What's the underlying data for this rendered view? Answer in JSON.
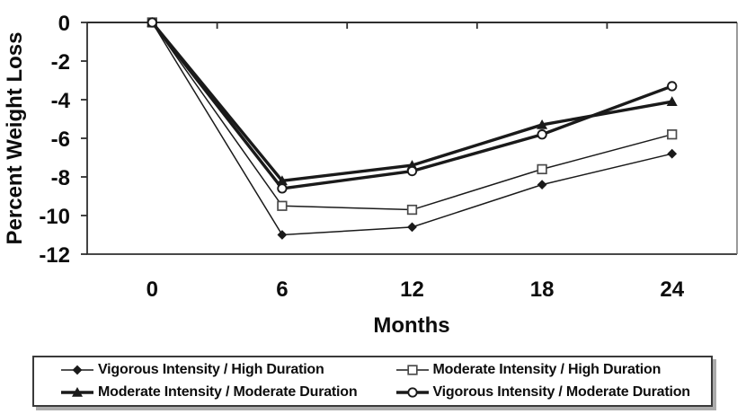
{
  "chart_data": {
    "type": "line",
    "title": "",
    "x": [
      0,
      6,
      12,
      18,
      24
    ],
    "xlabel": "Months",
    "ylabel": "Percent Weight Loss",
    "ylim": [
      -12,
      0
    ],
    "yticks": [
      0,
      -2,
      -4,
      -6,
      -8,
      -10,
      -12
    ],
    "grid": false,
    "legend_position": "bottom",
    "series": [
      {
        "name": "Vigorous Intensity / High Duration",
        "marker": "diamond",
        "marker_fill": "filled",
        "line_weight": "thin",
        "values": [
          0,
          -11.0,
          -10.6,
          -8.4,
          -6.8
        ]
      },
      {
        "name": "Moderate Intensity / High Duration",
        "marker": "square",
        "marker_fill": "open",
        "line_weight": "thin",
        "values": [
          0,
          -9.5,
          -9.7,
          -7.6,
          -5.8
        ]
      },
      {
        "name": "Moderate Intensity / Moderate Duration",
        "marker": "triangle",
        "marker_fill": "filled",
        "line_weight": "thick",
        "values": [
          0,
          -8.2,
          -7.4,
          -5.3,
          -4.1
        ]
      },
      {
        "name": "Vigorous Intensity / Moderate Duration",
        "marker": "circle",
        "marker_fill": "open",
        "line_weight": "thick",
        "values": [
          0,
          -8.6,
          -7.7,
          -5.8,
          -3.3
        ]
      }
    ],
    "colors": {
      "line": "#1a1a1a",
      "axis": "#2e2e2e",
      "border": "#6e6e6e",
      "text": "#0d0d0d",
      "marker_fill_open": "#ffffff",
      "background": "#ffffff"
    }
  }
}
